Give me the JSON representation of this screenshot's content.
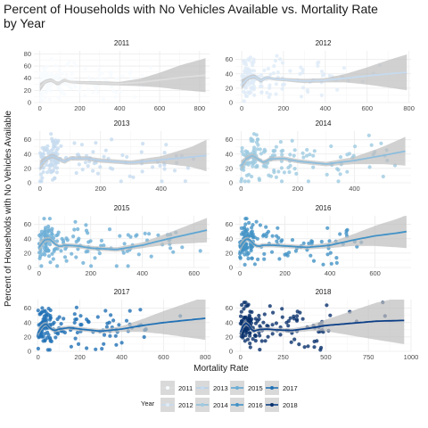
{
  "chart_data": {
    "type": "scatter",
    "title": "Percent of Households with No Vehicles Available vs. Mortality Rate by Year",
    "xlabel": "Mortality Rate",
    "ylabel": "Percent of Households with No Vehicles Available",
    "legend": {
      "title": "Year",
      "placement": "bottom"
    },
    "band_color": "#bdbdbd",
    "panels": [
      {
        "name": "2011",
        "color": "#f7fbff",
        "line_color": "#dedede",
        "xlim": [
          -30,
          850
        ],
        "ylim": [
          0,
          85
        ],
        "xticks": [
          0,
          200,
          400,
          600,
          800
        ],
        "yticks": [
          0,
          20,
          40,
          60,
          80
        ],
        "smooth": [
          [
            0,
            25
          ],
          [
            30,
            35
          ],
          [
            60,
            37
          ],
          [
            90,
            30
          ],
          [
            120,
            37
          ],
          [
            150,
            34
          ],
          [
            200,
            33
          ],
          [
            300,
            32
          ],
          [
            400,
            31
          ],
          [
            500,
            33
          ],
          [
            600,
            37
          ],
          [
            700,
            41
          ],
          [
            800,
            44
          ],
          [
            830,
            45
          ]
        ],
        "band": [
          [
            0,
            7
          ],
          [
            30,
            3
          ],
          [
            60,
            3
          ],
          [
            90,
            3
          ],
          [
            150,
            2
          ],
          [
            300,
            3
          ],
          [
            400,
            3
          ],
          [
            500,
            6
          ],
          [
            600,
            12
          ],
          [
            700,
            20
          ],
          [
            800,
            26
          ],
          [
            830,
            28
          ]
        ]
      },
      {
        "name": "2012",
        "color": "#deebf7",
        "line_color": "#c6dbef",
        "xlim": [
          -30,
          810
        ],
        "ylim": [
          0,
          72
        ],
        "xticks": [
          0,
          200,
          400,
          600,
          800
        ],
        "yticks": [
          0,
          20,
          40,
          60
        ],
        "smooth": [
          [
            0,
            25
          ],
          [
            30,
            34
          ],
          [
            60,
            37
          ],
          [
            90,
            30
          ],
          [
            120,
            35
          ],
          [
            150,
            33
          ],
          [
            200,
            32
          ],
          [
            300,
            30
          ],
          [
            400,
            31
          ],
          [
            500,
            34
          ],
          [
            600,
            37
          ],
          [
            700,
            40
          ],
          [
            790,
            42
          ]
        ],
        "band": [
          [
            0,
            7
          ],
          [
            30,
            3
          ],
          [
            60,
            3
          ],
          [
            150,
            2
          ],
          [
            300,
            3
          ],
          [
            400,
            3
          ],
          [
            500,
            6
          ],
          [
            600,
            12
          ],
          [
            700,
            19
          ],
          [
            790,
            25
          ]
        ]
      },
      {
        "name": "2013",
        "color": "#c6dbef",
        "line_color": "#b5d0ea",
        "xlim": [
          -20,
          560
        ],
        "ylim": [
          0,
          72
        ],
        "xticks": [
          0,
          200,
          400
        ],
        "yticks": [
          0,
          20,
          40,
          60
        ],
        "smooth": [
          [
            0,
            24
          ],
          [
            20,
            33
          ],
          [
            40,
            38
          ],
          [
            60,
            34
          ],
          [
            80,
            29
          ],
          [
            100,
            34
          ],
          [
            150,
            34
          ],
          [
            200,
            31
          ],
          [
            300,
            28
          ],
          [
            400,
            32
          ],
          [
            500,
            36
          ],
          [
            550,
            38
          ]
        ],
        "band": [
          [
            0,
            7
          ],
          [
            20,
            4
          ],
          [
            40,
            3
          ],
          [
            150,
            3
          ],
          [
            300,
            3
          ],
          [
            400,
            5
          ],
          [
            500,
            14
          ],
          [
            550,
            22
          ]
        ]
      },
      {
        "name": "2014",
        "color": "#9ecae1",
        "line_color": "#8dbedd",
        "xlim": [
          -20,
          600
        ],
        "ylim": [
          0,
          72
        ],
        "xticks": [
          0,
          200,
          400
        ],
        "yticks": [
          0,
          20,
          40,
          60
        ],
        "smooth": [
          [
            0,
            24
          ],
          [
            20,
            34
          ],
          [
            40,
            38
          ],
          [
            60,
            33
          ],
          [
            80,
            28
          ],
          [
            100,
            33
          ],
          [
            150,
            34
          ],
          [
            200,
            30
          ],
          [
            300,
            26
          ],
          [
            400,
            31
          ],
          [
            500,
            38
          ],
          [
            580,
            44
          ]
        ],
        "band": [
          [
            0,
            7
          ],
          [
            20,
            4
          ],
          [
            40,
            3
          ],
          [
            150,
            3
          ],
          [
            300,
            3
          ],
          [
            400,
            5
          ],
          [
            500,
            12
          ],
          [
            580,
            20
          ]
        ]
      },
      {
        "name": "2015",
        "color": "#6baed6",
        "line_color": "#5ea6d3",
        "xlim": [
          -20,
          660
        ],
        "ylim": [
          0,
          72
        ],
        "xticks": [
          0,
          200,
          400,
          600
        ],
        "yticks": [
          0,
          20,
          40,
          60
        ],
        "smooth": [
          [
            0,
            28
          ],
          [
            20,
            38
          ],
          [
            40,
            40
          ],
          [
            60,
            33
          ],
          [
            80,
            29
          ],
          [
            100,
            31
          ],
          [
            150,
            30
          ],
          [
            200,
            27
          ],
          [
            300,
            25
          ],
          [
            400,
            31
          ],
          [
            500,
            40
          ],
          [
            600,
            48
          ],
          [
            650,
            52
          ]
        ],
        "band": [
          [
            0,
            7
          ],
          [
            20,
            4
          ],
          [
            40,
            3
          ],
          [
            150,
            3
          ],
          [
            300,
            3
          ],
          [
            400,
            4
          ],
          [
            500,
            8
          ],
          [
            600,
            14
          ],
          [
            650,
            17
          ]
        ]
      },
      {
        "name": "2016",
        "color": "#4292c6",
        "line_color": "#4292c6",
        "xlim": [
          -20,
          760
        ],
        "ylim": [
          0,
          72
        ],
        "xticks": [
          0,
          200,
          400,
          600
        ],
        "yticks": [
          0,
          20,
          40,
          60
        ],
        "smooth": [
          [
            0,
            28
          ],
          [
            20,
            38
          ],
          [
            40,
            40
          ],
          [
            60,
            33
          ],
          [
            80,
            29
          ],
          [
            100,
            31
          ],
          [
            150,
            31
          ],
          [
            200,
            30
          ],
          [
            300,
            28
          ],
          [
            400,
            31
          ],
          [
            500,
            38
          ],
          [
            600,
            44
          ],
          [
            700,
            48
          ],
          [
            740,
            50
          ]
        ],
        "band": [
          [
            0,
            7
          ],
          [
            20,
            4
          ],
          [
            40,
            3
          ],
          [
            150,
            3
          ],
          [
            300,
            3
          ],
          [
            400,
            4
          ],
          [
            500,
            8
          ],
          [
            600,
            14
          ],
          [
            700,
            20
          ],
          [
            740,
            23
          ]
        ]
      },
      {
        "name": "2017",
        "color": "#2171b5",
        "line_color": "#2171b5",
        "xlim": [
          -20,
          820
        ],
        "ylim": [
          0,
          72
        ],
        "xticks": [
          0,
          200,
          400,
          600,
          800
        ],
        "yticks": [
          0,
          20,
          40,
          60
        ],
        "smooth": [
          [
            0,
            26
          ],
          [
            20,
            36
          ],
          [
            40,
            38
          ],
          [
            60,
            31
          ],
          [
            80,
            29
          ],
          [
            100,
            31
          ],
          [
            150,
            33
          ],
          [
            200,
            31
          ],
          [
            300,
            28
          ],
          [
            400,
            31
          ],
          [
            500,
            36
          ],
          [
            600,
            40
          ],
          [
            700,
            43
          ],
          [
            800,
            46
          ]
        ],
        "band": [
          [
            0,
            6
          ],
          [
            20,
            4
          ],
          [
            40,
            3
          ],
          [
            150,
            3
          ],
          [
            300,
            3
          ],
          [
            400,
            4
          ],
          [
            500,
            9
          ],
          [
            600,
            16
          ],
          [
            700,
            23
          ],
          [
            800,
            30
          ]
        ]
      },
      {
        "name": "2018",
        "color": "#08306b",
        "line_color": "#0b3e86",
        "xlim": [
          -30,
          1000
        ],
        "ylim": [
          0,
          72
        ],
        "xticks": [
          0,
          250,
          500,
          750,
          1000
        ],
        "yticks": [
          0,
          20,
          40,
          60
        ],
        "smooth": [
          [
            0,
            27
          ],
          [
            20,
            38
          ],
          [
            40,
            40
          ],
          [
            60,
            31
          ],
          [
            80,
            28
          ],
          [
            100,
            30
          ],
          [
            150,
            31
          ],
          [
            200,
            30
          ],
          [
            300,
            29
          ],
          [
            400,
            32
          ],
          [
            500,
            36
          ],
          [
            600,
            38
          ],
          [
            700,
            40
          ],
          [
            800,
            42
          ],
          [
            960,
            43
          ]
        ],
        "band": [
          [
            0,
            6
          ],
          [
            20,
            4
          ],
          [
            40,
            3
          ],
          [
            150,
            3
          ],
          [
            300,
            3
          ],
          [
            400,
            4
          ],
          [
            500,
            8
          ],
          [
            600,
            14
          ],
          [
            700,
            20
          ],
          [
            800,
            26
          ],
          [
            960,
            33
          ]
        ]
      }
    ]
  }
}
